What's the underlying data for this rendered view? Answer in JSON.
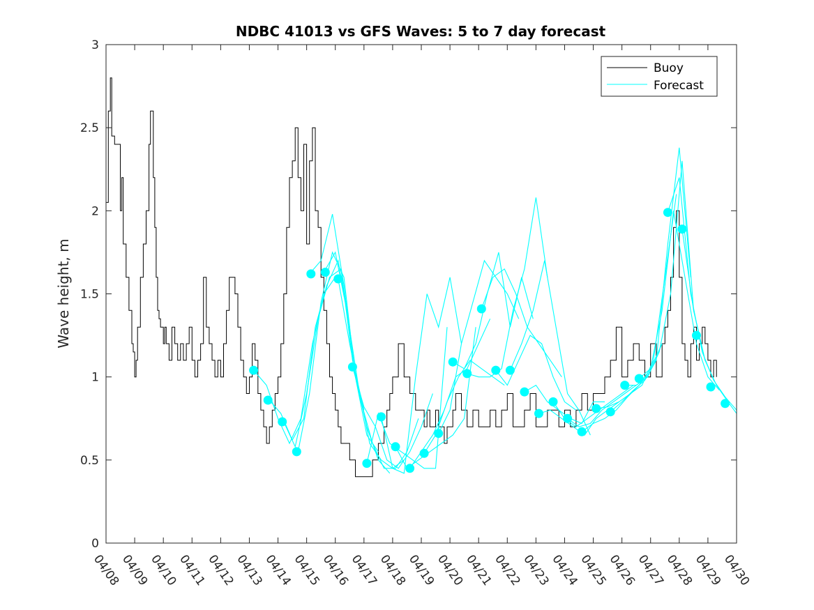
{
  "chart_data": {
    "type": "line",
    "title": "NDBC 41013 vs GFS Waves: 5 to 7 day forecast",
    "xlabel": "",
    "ylabel": "Wave height, m",
    "xlim_days": [
      8,
      30
    ],
    "ylim": [
      0,
      3
    ],
    "yticks": [
      0,
      0.5,
      1,
      1.5,
      2,
      2.5,
      3
    ],
    "xtick_labels": [
      "04/08",
      "04/09",
      "04/10",
      "04/11",
      "04/12",
      "04/13",
      "04/14",
      "04/15",
      "04/16",
      "04/17",
      "04/18",
      "04/19",
      "04/20",
      "04/21",
      "04/22",
      "04/23",
      "04/24",
      "04/25",
      "04/26",
      "04/27",
      "04/28",
      "04/29",
      "04/30"
    ],
    "grid": false,
    "legend": {
      "position": "top-right",
      "entries": [
        "Buoy",
        "Forecast"
      ]
    },
    "colors": {
      "buoy": "#000000",
      "forecast": "#00FFFF",
      "marker": "#00FFFF"
    },
    "buoy": {
      "name": "Buoy",
      "x": [
        8.0,
        8.08,
        8.15,
        8.2,
        8.3,
        8.4,
        8.5,
        8.55,
        8.6,
        8.7,
        8.8,
        8.9,
        8.95,
        9.0,
        9.05,
        9.1,
        9.2,
        9.3,
        9.4,
        9.5,
        9.55,
        9.65,
        9.7,
        9.75,
        9.8,
        9.85,
        9.9,
        10.0,
        10.05,
        10.1,
        10.2,
        10.3,
        10.4,
        10.5,
        10.6,
        10.7,
        10.8,
        10.9,
        11.0,
        11.1,
        11.2,
        11.3,
        11.4,
        11.5,
        11.6,
        11.7,
        11.8,
        11.9,
        12.0,
        12.1,
        12.2,
        12.3,
        12.4,
        12.5,
        12.6,
        12.7,
        12.8,
        12.9,
        13.0,
        13.1,
        13.2,
        13.3,
        13.4,
        13.5,
        13.6,
        13.7,
        13.8,
        13.9,
        14.0,
        14.1,
        14.2,
        14.3,
        14.4,
        14.5,
        14.6,
        14.7,
        14.8,
        14.9,
        15.0,
        15.1,
        15.2,
        15.3,
        15.4,
        15.5,
        15.6,
        15.7,
        15.8,
        15.9,
        16.0,
        16.1,
        16.2,
        16.3,
        16.4,
        16.5,
        16.6,
        16.7,
        16.8,
        16.9,
        17.0,
        17.1,
        17.2,
        17.3,
        17.4,
        17.5,
        17.6,
        17.7,
        17.8,
        17.9,
        18.0,
        18.2,
        18.4,
        18.6,
        18.8,
        19.0,
        19.1,
        19.2,
        19.3,
        19.4,
        19.5,
        19.6,
        19.7,
        19.8,
        19.9,
        20.0,
        20.1,
        20.2,
        20.4,
        20.6,
        20.8,
        21.0,
        21.2,
        21.4,
        21.6,
        21.8,
        22.0,
        22.2,
        22.4,
        22.6,
        22.8,
        23.0,
        23.2,
        23.4,
        23.6,
        23.8,
        24.0,
        24.2,
        24.4,
        24.6,
        24.8,
        25.0,
        25.2,
        25.4,
        25.6,
        25.8,
        26.0,
        26.2,
        26.4,
        26.6,
        26.8,
        27.0,
        27.2,
        27.4,
        27.5,
        27.6,
        27.7,
        27.8,
        27.9,
        28.0,
        28.1,
        28.2,
        28.3,
        28.4,
        28.5,
        28.6,
        28.7,
        28.8,
        28.9,
        29.0,
        29.1,
        29.2,
        29.3
      ],
      "y": [
        2.05,
        2.6,
        2.8,
        2.45,
        2.4,
        2.4,
        2.0,
        2.2,
        1.8,
        1.6,
        1.4,
        1.2,
        1.15,
        1.0,
        1.1,
        1.3,
        1.6,
        1.8,
        2.0,
        2.4,
        2.6,
        2.2,
        1.9,
        1.6,
        1.4,
        1.35,
        1.3,
        1.2,
        1.3,
        1.2,
        1.1,
        1.3,
        1.2,
        1.1,
        1.2,
        1.1,
        1.2,
        1.3,
        1.1,
        1.0,
        1.1,
        1.2,
        1.6,
        1.3,
        1.2,
        1.1,
        1.0,
        1.1,
        1.0,
        1.2,
        1.4,
        1.6,
        1.6,
        1.5,
        1.3,
        1.1,
        1.0,
        0.9,
        1.0,
        1.2,
        1.1,
        0.9,
        0.8,
        0.7,
        0.6,
        0.7,
        0.8,
        0.9,
        1.0,
        1.2,
        1.5,
        1.9,
        2.2,
        2.3,
        2.5,
        2.2,
        2.0,
        2.4,
        1.8,
        2.3,
        2.5,
        2.0,
        1.9,
        1.6,
        1.4,
        1.2,
        1.0,
        0.9,
        0.8,
        0.7,
        0.6,
        0.6,
        0.6,
        0.5,
        0.5,
        0.4,
        0.4,
        0.4,
        0.4,
        0.4,
        0.4,
        0.5,
        0.5,
        0.6,
        0.6,
        0.7,
        0.8,
        0.9,
        1.0,
        1.2,
        1.0,
        0.9,
        0.8,
        0.8,
        0.7,
        0.8,
        0.7,
        0.7,
        0.8,
        0.7,
        0.7,
        0.6,
        0.7,
        0.7,
        0.8,
        0.9,
        0.8,
        0.7,
        0.8,
        0.7,
        0.7,
        0.8,
        0.7,
        0.8,
        0.9,
        0.7,
        0.7,
        0.8,
        0.9,
        0.7,
        0.7,
        0.8,
        0.8,
        0.7,
        0.8,
        0.7,
        0.8,
        0.9,
        0.8,
        0.9,
        0.9,
        1.0,
        1.1,
        1.3,
        1.0,
        1.1,
        1.2,
        1.1,
        1.0,
        1.2,
        1.0,
        1.2,
        1.3,
        1.4,
        1.6,
        1.9,
        2.0,
        1.6,
        1.2,
        1.1,
        1.0,
        1.2,
        1.3,
        1.1,
        1.2,
        1.3,
        1.2,
        1.1,
        1.0,
        1.1,
        1.0
      ]
    },
    "forecast_lines": [
      {
        "x": [
          13.2,
          13.6,
          14.0,
          14.4,
          14.8,
          15.2,
          15.6,
          16.0
        ],
        "y": [
          1.03,
          0.95,
          0.75,
          0.6,
          0.75,
          1.2,
          1.5,
          1.6
        ]
      },
      {
        "x": [
          13.7,
          14.1,
          14.5,
          14.9,
          15.3,
          15.7,
          16.1,
          16.5
        ],
        "y": [
          0.86,
          0.78,
          0.62,
          0.75,
          1.3,
          1.55,
          1.7,
          1.3
        ]
      },
      {
        "x": [
          14.2,
          14.6,
          15.0,
          15.4,
          15.8,
          16.2,
          16.6,
          17.0
        ],
        "y": [
          0.73,
          0.58,
          0.9,
          1.35,
          1.6,
          1.65,
          1.1,
          0.8
        ]
      },
      {
        "x": [
          14.7,
          15.1,
          15.5,
          15.9,
          16.3,
          16.7,
          17.1,
          17.5
        ],
        "y": [
          0.55,
          0.9,
          1.45,
          1.75,
          1.6,
          1.0,
          0.65,
          0.55
        ]
      },
      {
        "x": [
          15.1,
          15.5,
          15.9,
          16.3,
          16.7,
          17.1,
          17.5,
          17.9
        ],
        "y": [
          1.62,
          1.7,
          1.98,
          1.55,
          1.0,
          0.7,
          0.5,
          0.42
        ]
      },
      {
        "x": [
          15.6,
          16.0,
          16.4,
          16.8,
          17.2,
          17.6,
          18.0,
          18.4
        ],
        "y": [
          1.63,
          1.75,
          1.4,
          0.95,
          0.6,
          0.5,
          0.45,
          0.5
        ]
      },
      {
        "x": [
          16.1,
          16.5,
          16.9,
          17.3,
          17.7,
          18.1,
          18.5,
          18.9
        ],
        "y": [
          1.59,
          1.2,
          0.85,
          0.6,
          0.45,
          0.45,
          0.55,
          0.75
        ]
      },
      {
        "x": [
          16.6,
          17.0,
          17.4,
          17.8,
          18.2,
          18.6,
          19.0,
          19.4
        ],
        "y": [
          1.06,
          0.82,
          0.7,
          0.5,
          0.45,
          0.55,
          0.7,
          0.9
        ]
      },
      {
        "x": [
          17.1,
          17.5,
          17.9,
          18.3,
          18.7,
          19.1,
          19.5,
          19.9
        ],
        "y": [
          0.48,
          0.78,
          0.6,
          0.55,
          0.5,
          0.45,
          0.45,
          1.3
        ]
      },
      {
        "x": [
          17.6,
          18.0,
          18.4,
          18.8,
          19.2,
          19.6,
          20.0,
          20.4
        ],
        "y": [
          0.76,
          0.45,
          0.42,
          1.0,
          1.5,
          1.3,
          1.6,
          1.2
        ]
      },
      {
        "x": [
          18.1,
          18.5,
          18.9,
          19.3,
          19.7,
          20.1,
          20.5,
          20.9
        ],
        "y": [
          0.58,
          0.45,
          0.5,
          0.55,
          0.6,
          0.65,
          0.75,
          1.3
        ]
      },
      {
        "x": [
          18.6,
          19.0,
          19.4,
          19.8,
          20.2,
          20.6,
          21.0,
          21.4
        ],
        "y": [
          0.45,
          0.55,
          0.65,
          0.8,
          1.0,
          1.05,
          1.2,
          1.35
        ]
      },
      {
        "x": [
          19.1,
          19.5,
          19.9,
          20.3,
          20.7,
          21.1,
          21.5,
          21.9
        ],
        "y": [
          0.54,
          0.65,
          0.85,
          1.0,
          1.1,
          1.05,
          1.0,
          0.95
        ]
      },
      {
        "x": [
          19.6,
          20.0,
          20.4,
          20.8,
          21.2,
          21.6,
          22.0,
          22.4
        ],
        "y": [
          0.66,
          0.8,
          1.2,
          1.45,
          1.7,
          1.6,
          1.5,
          1.35
        ]
      },
      {
        "x": [
          20.1,
          20.5,
          20.9,
          21.3,
          21.7,
          22.1,
          22.5,
          22.9
        ],
        "y": [
          1.09,
          1.05,
          1.2,
          1.5,
          1.75,
          1.3,
          1.6,
          1.35
        ]
      },
      {
        "x": [
          20.6,
          21.0,
          21.4,
          21.8,
          22.2,
          22.6,
          23.0,
          23.4
        ],
        "y": [
          1.02,
          1.0,
          1.0,
          1.05,
          1.4,
          1.65,
          2.08,
          1.6
        ]
      },
      {
        "x": [
          21.1,
          21.5,
          21.9,
          22.3,
          22.7,
          23.1,
          23.5,
          23.9
        ],
        "y": [
          1.41,
          1.6,
          1.65,
          1.5,
          1.3,
          1.2,
          1.1,
          1.0
        ]
      },
      {
        "x": [
          21.6,
          22.0,
          22.4,
          22.8,
          23.2,
          23.6,
          24.0,
          24.4
        ],
        "y": [
          1.04,
          0.95,
          1.1,
          1.25,
          1.2,
          1.0,
          0.85,
          0.8
        ]
      },
      {
        "x": [
          22.1,
          22.5,
          22.9,
          23.3,
          23.7,
          24.1,
          24.5,
          24.9
        ],
        "y": [
          1.04,
          1.2,
          1.4,
          1.7,
          1.3,
          0.9,
          0.8,
          0.65
        ]
      },
      {
        "x": [
          22.6,
          23.0,
          23.4,
          23.8,
          24.2,
          24.6,
          25.0,
          25.4
        ],
        "y": [
          0.91,
          0.95,
          0.85,
          0.8,
          0.75,
          0.72,
          0.85,
          0.85
        ]
      },
      {
        "x": [
          23.1,
          23.5,
          23.9,
          24.3,
          24.7,
          25.1,
          25.5,
          25.9
        ],
        "y": [
          0.78,
          0.8,
          0.75,
          0.7,
          0.65,
          0.75,
          0.8,
          0.85
        ]
      },
      {
        "x": [
          23.6,
          24.0,
          24.4,
          24.8,
          25.2,
          25.6,
          26.0,
          26.4
        ],
        "y": [
          0.85,
          0.75,
          0.7,
          0.75,
          0.8,
          0.85,
          0.9,
          0.95
        ]
      },
      {
        "x": [
          24.1,
          24.5,
          24.9,
          25.3,
          25.7,
          26.1,
          26.5,
          26.9
        ],
        "y": [
          0.75,
          0.7,
          0.72,
          0.8,
          0.85,
          0.9,
          0.95,
          1.0
        ]
      },
      {
        "x": [
          24.6,
          25.0,
          25.4,
          25.8,
          26.2,
          26.6,
          27.0,
          27.4
        ],
        "y": [
          0.67,
          0.72,
          0.75,
          0.8,
          0.88,
          0.95,
          1.05,
          1.2
        ]
      },
      {
        "x": [
          25.1,
          25.5,
          25.9,
          26.3,
          26.7,
          27.1,
          27.5,
          27.9
        ],
        "y": [
          0.81,
          0.82,
          0.85,
          0.9,
          0.95,
          1.1,
          1.6,
          2.1
        ]
      },
      {
        "x": [
          25.6,
          26.0,
          26.4,
          26.8,
          27.2,
          27.6,
          28.0,
          28.4
        ],
        "y": [
          0.79,
          0.85,
          0.92,
          0.98,
          1.1,
          1.8,
          2.38,
          1.6
        ]
      },
      {
        "x": [
          26.1,
          26.5,
          26.9,
          27.3,
          27.7,
          28.1,
          28.5,
          28.9
        ],
        "y": [
          0.95,
          0.95,
          1.0,
          1.15,
          1.5,
          2.3,
          1.4,
          1.1
        ]
      },
      {
        "x": [
          26.6,
          27.0,
          27.4,
          27.8,
          28.2,
          28.6,
          29.0,
          29.4
        ],
        "y": [
          0.99,
          1.05,
          1.4,
          2.0,
          1.6,
          1.2,
          1.0,
          0.92
        ]
      },
      {
        "x": [
          27.6,
          28.0,
          28.4,
          28.8,
          29.2,
          29.6,
          30.0
        ],
        "y": [
          1.99,
          2.2,
          1.5,
          1.15,
          0.98,
          0.88,
          0.8
        ]
      },
      {
        "x": [
          28.1,
          28.5,
          28.9,
          29.3,
          29.7,
          30.0
        ],
        "y": [
          1.89,
          1.4,
          1.1,
          0.95,
          0.85,
          0.78
        ]
      }
    ],
    "markers": {
      "x": [
        13.15,
        13.65,
        14.15,
        14.65,
        15.15,
        15.65,
        16.1,
        16.6,
        17.1,
        17.6,
        18.1,
        18.6,
        19.1,
        19.6,
        20.1,
        20.6,
        21.1,
        21.6,
        22.1,
        22.6,
        23.1,
        23.6,
        24.1,
        24.6,
        25.1,
        25.6,
        26.1,
        26.6,
        27.6,
        28.1,
        28.6,
        29.1,
        29.6
      ],
      "y": [
        1.04,
        0.86,
        0.73,
        0.55,
        1.62,
        1.63,
        1.59,
        1.06,
        0.48,
        0.76,
        0.58,
        0.45,
        0.54,
        0.66,
        1.09,
        1.02,
        1.41,
        1.04,
        1.04,
        0.91,
        0.78,
        0.85,
        0.75,
        0.67,
        0.81,
        0.79,
        0.95,
        0.99,
        1.99,
        1.89,
        1.25,
        0.94,
        0.84
      ]
    }
  }
}
